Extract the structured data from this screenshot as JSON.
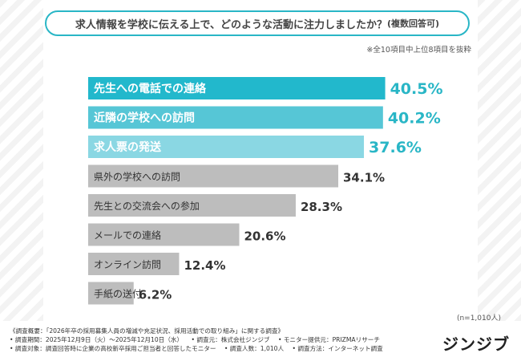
{
  "title": {
    "main": "求人情報を学校に伝える上で、どのような活動に注力しましたか？",
    "sub": "(複数回答可)"
  },
  "note": "※全10項目中上位8項目を抜粋",
  "sample_size": "(n=1,010人)",
  "colors": {
    "highlight": "#22b8cc",
    "highlight_mid": "#56c6d6",
    "highlight_light": "#8ad7e3",
    "gray": "#bdbdbd",
    "label_highlight": "#ffffff",
    "label_gray": "#333333",
    "value_highlight": "#29b6c6",
    "value_gray": "#333333"
  },
  "chart_data": {
    "type": "bar",
    "orientation": "horizontal",
    "unit": "%",
    "categories": [
      "先生への電話での連絡",
      "近隣の学校への訪問",
      "求人票の発送",
      "県外の学校への訪問",
      "先生との交流会への参加",
      "メールでの連絡",
      "オンライン訪問",
      "手紙の送付"
    ],
    "values": [
      40.5,
      40.2,
      37.6,
      34.1,
      28.3,
      20.6,
      12.4,
      6.2
    ],
    "value_labels": [
      "40.5%",
      "40.2%",
      "37.6%",
      "34.1%",
      "28.3%",
      "20.6%",
      "12.4%",
      "6.2%"
    ],
    "highlighted": [
      true,
      true,
      true,
      false,
      false,
      false,
      false,
      false
    ]
  },
  "footer": {
    "line1": "《調査概要：「2026年卒の採用募集人員の増減や充足状況、採用活動での取り組み」に関する調査》",
    "line2_a": "• 調査期間：2025年12月9日（火）～2025年12月10日（水）",
    "line2_b": "• 調査元：株式会社ジンジブ",
    "line2_c": "• モニター提供元：PRIZMAリサーチ",
    "line3_a": "• 調査対象：調査回答時に企業の高校新卒採用ご担当者と回答したモニター",
    "line3_b": "• 調査人数：1,010人",
    "line3_c": "• 調査方法：インターネット調査"
  },
  "logo": "ジンジブ"
}
